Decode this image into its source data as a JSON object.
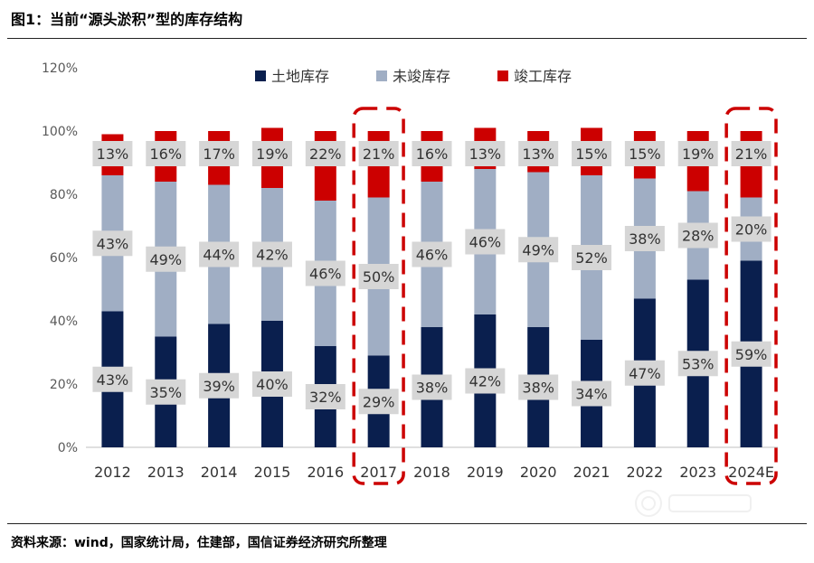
{
  "figure_title": "图1：当前“源头淤积”型的库存结构",
  "source": "资料来源：wind，国家统计局，住建部，国信证券经济研究所整理",
  "colors": {
    "land": "#0a1f4e",
    "unbuilt": "#a0aec4",
    "completed": "#cc0000",
    "label_bg": "#d6d6d6",
    "highlight": "#cc0000",
    "axis_text": "#595959"
  },
  "chart_data": {
    "type": "bar",
    "stacked": true,
    "categories": [
      "2012",
      "2013",
      "2014",
      "2015",
      "2016",
      "2017",
      "2018",
      "2019",
      "2020",
      "2021",
      "2022",
      "2023",
      "2024E"
    ],
    "series": [
      {
        "name": "土地库存",
        "values": [
          43,
          35,
          39,
          40,
          32,
          29,
          38,
          42,
          38,
          34,
          47,
          53,
          59
        ]
      },
      {
        "name": "未竣库存",
        "values": [
          43,
          49,
          44,
          42,
          46,
          50,
          46,
          46,
          49,
          52,
          38,
          28,
          20
        ]
      },
      {
        "name": "竣工库存",
        "values": [
          13,
          16,
          17,
          19,
          22,
          21,
          16,
          13,
          13,
          15,
          15,
          19,
          21
        ]
      }
    ],
    "y_ticks": [
      "0%",
      "20%",
      "40%",
      "60%",
      "80%",
      "100%",
      "120%"
    ],
    "ylim": [
      0,
      120
    ],
    "legend_position": "top",
    "grid": false,
    "highlighted_categories": [
      "2017",
      "2024E"
    ]
  }
}
